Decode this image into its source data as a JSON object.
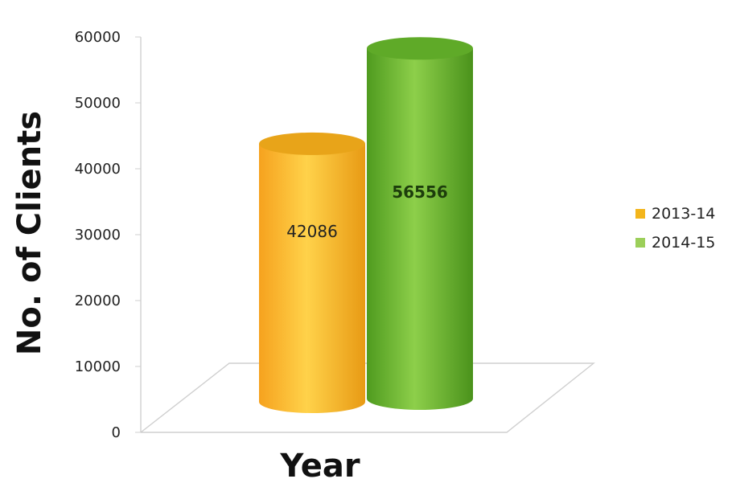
{
  "chart_data": {
    "type": "bar",
    "categories": [
      "2013-14",
      "2014-15"
    ],
    "values": [
      42086,
      56556
    ],
    "xlabel": "Year",
    "ylabel": "No. of Clients",
    "ylim": [
      0,
      60000
    ],
    "yticks": [
      "0",
      "10000",
      "20000",
      "30000",
      "40000",
      "50000",
      "60000"
    ],
    "data_labels": [
      "42086",
      "56556"
    ],
    "legend": {
      "position": "right",
      "items": [
        {
          "label": "2013-14",
          "color": "#f3b51c"
        },
        {
          "label": "2014-15",
          "color": "#8cc63f"
        }
      ]
    },
    "colors": [
      "#f3b51c",
      "#6fb131"
    ],
    "grid": false,
    "style": "3d-cylinder"
  }
}
